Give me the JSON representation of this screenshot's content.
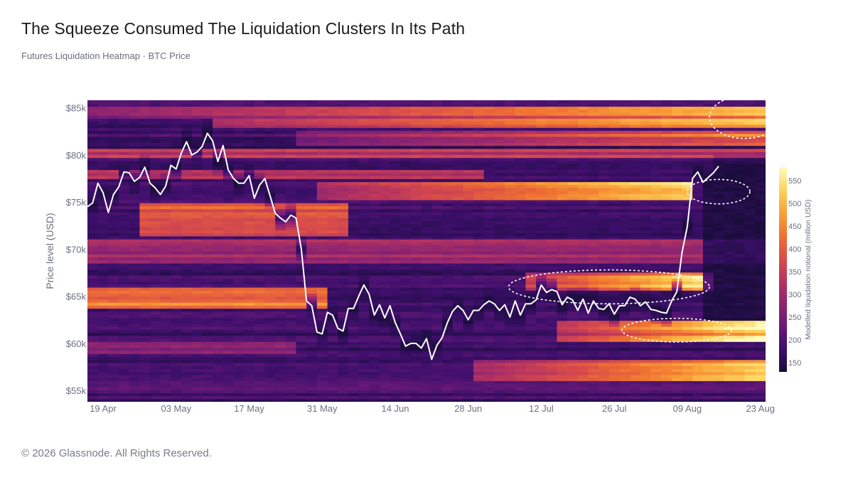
{
  "title": "The Squeeze Consumed The Liquidation Clusters In Its Path",
  "subtitle": "Futures Liquidation Heatmap · BTC Price",
  "footer": "© 2026 Glassnode. All Rights Reserved.",
  "chart_data": {
    "type": "heatmap",
    "ylabel": "Price level (USD)",
    "colorbar_label": "Modelled liquidation notional (million USD)",
    "ylim": [
      53800,
      85800
    ],
    "xlim": [
      "2024-04-16",
      "2024-08-24"
    ],
    "y_ticks": [
      {
        "value": 55000,
        "label": "$55k"
      },
      {
        "value": 60000,
        "label": "$60k"
      },
      {
        "value": 65000,
        "label": "$65k"
      },
      {
        "value": 70000,
        "label": "$70k"
      },
      {
        "value": 75000,
        "label": "$75k"
      },
      {
        "value": 80000,
        "label": "$80k"
      },
      {
        "value": 85000,
        "label": "$85k"
      }
    ],
    "x_ticks": [
      {
        "date": "2024-04-19",
        "label": "19 Apr"
      },
      {
        "date": "2024-05-03",
        "label": "03 May"
      },
      {
        "date": "2024-05-17",
        "label": "17 May"
      },
      {
        "date": "2024-05-31",
        "label": "31 May"
      },
      {
        "date": "2024-06-14",
        "label": "14 Jun"
      },
      {
        "date": "2024-06-28",
        "label": "28 Jun"
      },
      {
        "date": "2024-07-12",
        "label": "12 Jul"
      },
      {
        "date": "2024-07-26",
        "label": "26 Jul"
      },
      {
        "date": "2024-08-09",
        "label": "09 Aug"
      },
      {
        "date": "2024-08-23",
        "label": "23 Aug"
      }
    ],
    "colorbar": {
      "min": 130,
      "max": 580,
      "ticks": [
        150,
        200,
        250,
        300,
        350,
        400,
        450,
        500,
        550
      ],
      "colormap": [
        "#1a0d3b",
        "#3d0f6b",
        "#6a1a78",
        "#8f2570",
        "#b7345f",
        "#d94d4a",
        "#ef7232",
        "#f9a23a",
        "#fcd35c",
        "#fcfdbf"
      ]
    },
    "series": [
      {
        "name": "BTC Price",
        "color": "#ffffff",
        "points": [
          [
            "2024-04-16",
            74500
          ],
          [
            "2024-04-17",
            74900
          ],
          [
            "2024-04-18",
            77000
          ],
          [
            "2024-04-19",
            76000
          ],
          [
            "2024-04-20",
            73900
          ],
          [
            "2024-04-21",
            75800
          ],
          [
            "2024-04-22",
            76600
          ],
          [
            "2024-04-23",
            78200
          ],
          [
            "2024-04-24",
            78100
          ],
          [
            "2024-04-25",
            77200
          ],
          [
            "2024-04-26",
            77600
          ],
          [
            "2024-04-27",
            78700
          ],
          [
            "2024-04-28",
            77000
          ],
          [
            "2024-04-29",
            76500
          ],
          [
            "2024-04-30",
            75800
          ],
          [
            "2024-05-01",
            76700
          ],
          [
            "2024-05-02",
            78900
          ],
          [
            "2024-05-03",
            78500
          ],
          [
            "2024-05-04",
            80200
          ],
          [
            "2024-05-05",
            81400
          ],
          [
            "2024-05-06",
            80000
          ],
          [
            "2024-05-07",
            80300
          ],
          [
            "2024-05-08",
            80900
          ],
          [
            "2024-05-09",
            82300
          ],
          [
            "2024-05-10",
            81500
          ],
          [
            "2024-05-11",
            79300
          ],
          [
            "2024-05-12",
            81000
          ],
          [
            "2024-05-13",
            78400
          ],
          [
            "2024-05-14",
            77500
          ],
          [
            "2024-05-15",
            77000
          ],
          [
            "2024-05-16",
            77000
          ],
          [
            "2024-05-17",
            77800
          ],
          [
            "2024-05-18",
            75400
          ],
          [
            "2024-05-19",
            76800
          ],
          [
            "2024-05-20",
            77500
          ],
          [
            "2024-05-21",
            75700
          ],
          [
            "2024-05-22",
            73800
          ],
          [
            "2024-05-23",
            73300
          ],
          [
            "2024-05-24",
            72900
          ],
          [
            "2024-05-25",
            73600
          ],
          [
            "2024-05-26",
            73300
          ],
          [
            "2024-05-27",
            70000
          ],
          [
            "2024-05-28",
            64500
          ],
          [
            "2024-05-29",
            64000
          ],
          [
            "2024-05-30",
            61200
          ],
          [
            "2024-05-31",
            61000
          ],
          [
            "2024-06-01",
            63300
          ],
          [
            "2024-06-02",
            63000
          ],
          [
            "2024-06-03",
            61600
          ],
          [
            "2024-06-04",
            61300
          ],
          [
            "2024-06-05",
            63700
          ],
          [
            "2024-06-06",
            63700
          ],
          [
            "2024-06-07",
            65000
          ],
          [
            "2024-06-08",
            66200
          ],
          [
            "2024-06-09",
            65200
          ],
          [
            "2024-06-10",
            63000
          ],
          [
            "2024-06-11",
            64100
          ],
          [
            "2024-06-12",
            62700
          ],
          [
            "2024-06-13",
            64000
          ],
          [
            "2024-06-14",
            62200
          ],
          [
            "2024-06-15",
            61000
          ],
          [
            "2024-06-16",
            59700
          ],
          [
            "2024-06-17",
            60000
          ],
          [
            "2024-06-18",
            60000
          ],
          [
            "2024-06-19",
            59500
          ],
          [
            "2024-06-20",
            60500
          ],
          [
            "2024-06-21",
            58300
          ],
          [
            "2024-06-22",
            59800
          ],
          [
            "2024-06-23",
            60600
          ],
          [
            "2024-06-24",
            62200
          ],
          [
            "2024-06-25",
            63400
          ],
          [
            "2024-06-26",
            64000
          ],
          [
            "2024-06-27",
            63500
          ],
          [
            "2024-06-28",
            62500
          ],
          [
            "2024-06-29",
            63500
          ],
          [
            "2024-06-30",
            63500
          ],
          [
            "2024-07-01",
            64100
          ],
          [
            "2024-07-02",
            64500
          ],
          [
            "2024-07-03",
            64200
          ],
          [
            "2024-07-04",
            63500
          ],
          [
            "2024-07-05",
            64100
          ],
          [
            "2024-07-06",
            62800
          ],
          [
            "2024-07-07",
            64500
          ],
          [
            "2024-07-08",
            63000
          ],
          [
            "2024-07-09",
            64200
          ],
          [
            "2024-07-10",
            64200
          ],
          [
            "2024-07-11",
            64600
          ],
          [
            "2024-07-12",
            66200
          ],
          [
            "2024-07-13",
            65400
          ],
          [
            "2024-07-14",
            65700
          ],
          [
            "2024-07-15",
            65500
          ],
          [
            "2024-07-16",
            64100
          ],
          [
            "2024-07-17",
            64900
          ],
          [
            "2024-07-18",
            64600
          ],
          [
            "2024-07-19",
            63500
          ],
          [
            "2024-07-20",
            64700
          ],
          [
            "2024-07-21",
            63200
          ],
          [
            "2024-07-22",
            64500
          ],
          [
            "2024-07-23",
            63700
          ],
          [
            "2024-07-24",
            63600
          ],
          [
            "2024-07-25",
            64200
          ],
          [
            "2024-07-26",
            63100
          ],
          [
            "2024-07-27",
            64000
          ],
          [
            "2024-07-28",
            64000
          ],
          [
            "2024-07-29",
            64900
          ],
          [
            "2024-07-30",
            64700
          ],
          [
            "2024-07-31",
            64000
          ],
          [
            "2024-08-01",
            64400
          ],
          [
            "2024-08-02",
            63600
          ],
          [
            "2024-08-03",
            63500
          ],
          [
            "2024-08-04",
            63300
          ],
          [
            "2024-08-05",
            63200
          ],
          [
            "2024-08-06",
            64500
          ],
          [
            "2024-08-07",
            65500
          ],
          [
            "2024-08-08",
            69700
          ],
          [
            "2024-08-09",
            72400
          ],
          [
            "2024-08-10",
            77500
          ],
          [
            "2024-08-11",
            78200
          ],
          [
            "2024-08-12",
            77100
          ],
          [
            "2024-08-13",
            77600
          ],
          [
            "2024-08-14",
            78100
          ],
          [
            "2024-08-15",
            78800
          ]
        ]
      }
    ],
    "annotations": [
      {
        "shape": "ellipse",
        "style": "dashed",
        "color": "#ffffff",
        "center": [
          "2024-08-20",
          84000
        ],
        "x_span_days": 13.5,
        "y_span": 4500
      },
      {
        "shape": "ellipse",
        "style": "dashed",
        "color": "#ffffff",
        "center": [
          "2024-08-15",
          76100
        ],
        "x_span_days": 12,
        "y_span": 2600
      },
      {
        "shape": "ellipse",
        "style": "dashed",
        "color": "#ffffff",
        "center": [
          "2024-07-25",
          66000
        ],
        "x_span_days": 38.5,
        "y_span": 3600
      },
      {
        "shape": "ellipse",
        "style": "dashed",
        "color": "#ffffff",
        "center": [
          "2024-08-07",
          61400
        ],
        "x_span_days": 21,
        "y_span": 2500
      }
    ],
    "heat_bands": [
      {
        "price": [
          84000,
          85300
        ],
        "days": [
          0,
          130
        ],
        "level": [
          0.3,
          0.8
        ],
        "ramp": true
      },
      {
        "price": [
          82800,
          84000
        ],
        "days": [
          25,
          130
        ],
        "level": [
          0.45,
          0.95
        ],
        "ramp": true
      },
      {
        "price": [
          81000,
          82600
        ],
        "days": [
          40,
          130
        ],
        "level": [
          0.3,
          0.7
        ],
        "ramp": true
      },
      {
        "price": [
          79600,
          80700
        ],
        "days": [
          0,
          130
        ],
        "level": [
          0.35,
          0.65
        ],
        "ramp": false
      },
      {
        "price": [
          77500,
          78500
        ],
        "days": [
          0,
          75
        ],
        "level": [
          0.4,
          0.55
        ],
        "ramp": false
      },
      {
        "price": [
          75300,
          77000
        ],
        "days": [
          45,
          115
        ],
        "level": [
          0.4,
          0.9
        ],
        "ramp": true
      },
      {
        "price": [
          71500,
          75000
        ],
        "days": [
          10,
          50
        ],
        "level": [
          0.45,
          0.8
        ],
        "ramp": false
      },
      {
        "price": [
          68500,
          71000
        ],
        "days": [
          0,
          130
        ],
        "level": [
          0.25,
          0.55
        ],
        "ramp": false
      },
      {
        "price": [
          65500,
          67500
        ],
        "days": [
          85,
          120
        ],
        "level": [
          0.5,
          0.95
        ],
        "ramp": true
      },
      {
        "price": [
          63800,
          65800
        ],
        "days": [
          0,
          46
        ],
        "level": [
          0.55,
          0.9
        ],
        "ramp": false
      },
      {
        "price": [
          60200,
          62500
        ],
        "days": [
          90,
          130
        ],
        "level": [
          0.45,
          1.0
        ],
        "ramp": true
      },
      {
        "price": [
          59000,
          60200
        ],
        "days": [
          0,
          40
        ],
        "level": [
          0.25,
          0.45
        ],
        "ramp": false
      },
      {
        "price": [
          56000,
          58200
        ],
        "days": [
          75,
          130
        ],
        "level": [
          0.4,
          0.9
        ],
        "ramp": true
      },
      {
        "price": [
          54800,
          56000
        ],
        "days": [
          0,
          130
        ],
        "level": [
          0.1,
          0.3
        ],
        "ramp": false
      }
    ]
  }
}
